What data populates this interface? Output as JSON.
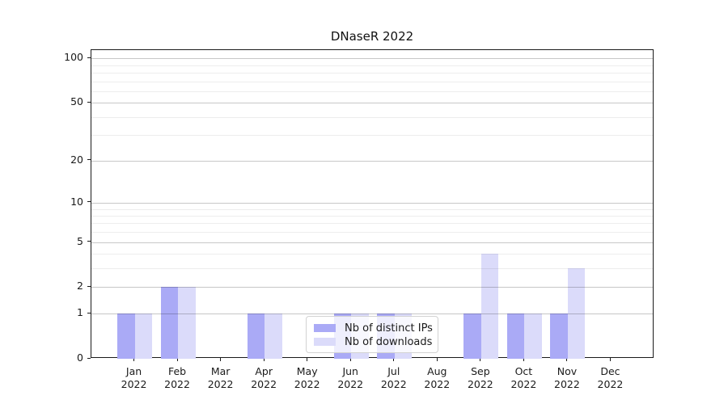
{
  "title": "DNaseR 2022",
  "chart_data": {
    "type": "bar",
    "title": "DNaseR 2022",
    "categories": [
      "Jan 2022",
      "Feb 2022",
      "Mar 2022",
      "Apr 2022",
      "May 2022",
      "Jun 2022",
      "Jul 2022",
      "Aug 2022",
      "Sep 2022",
      "Oct 2022",
      "Nov 2022",
      "Dec 2022"
    ],
    "series": [
      {
        "name": "Nb of distinct IPs",
        "color": "#aaaaf6",
        "values": [
          1,
          2,
          0,
          1,
          0,
          1,
          1,
          0,
          1,
          1,
          1,
          0
        ]
      },
      {
        "name": "Nb of downloads",
        "color": "#dbdbfa",
        "values": [
          1,
          2,
          0,
          1,
          0,
          1,
          1,
          0,
          4,
          1,
          3,
          0
        ]
      }
    ],
    "xlabel": "",
    "ylabel": "",
    "y_axis": {
      "scale": "log1p",
      "tick_values": [
        0,
        1,
        2,
        5,
        10,
        20,
        50,
        100
      ],
      "tick_labels": [
        "0",
        "1",
        "2",
        "5",
        "10",
        "20",
        "50",
        "100"
      ],
      "minor_grid_values": [
        3,
        4,
        6,
        7,
        8,
        9,
        30,
        40,
        60,
        70,
        80,
        90
      ],
      "max": 113
    },
    "legend": {
      "position": "lower center",
      "labels": [
        "Nb of distinct IPs",
        "Nb of downloads"
      ]
    },
    "grid": true,
    "bar_mode": "grouped"
  }
}
